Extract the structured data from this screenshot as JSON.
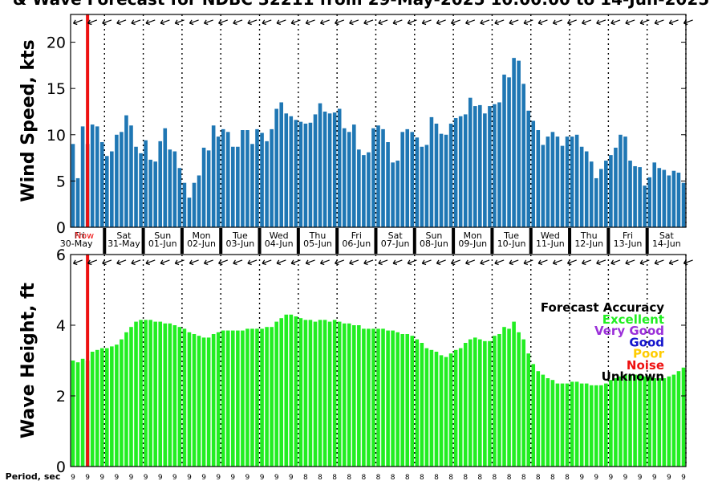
{
  "title": "& Wave Forecast for NDBC 32211 from 29-May-2025 10:00:00 to 14-Jun-2025",
  "period_label": "Period, sec",
  "now_label": "Now",
  "day_labels": [
    {
      "day": "Fri",
      "date": "30-May"
    },
    {
      "day": "Sat",
      "date": "31-May"
    },
    {
      "day": "Sun",
      "date": "01-Jun"
    },
    {
      "day": "Mon",
      "date": "02-Jun"
    },
    {
      "day": "Tue",
      "date": "03-Jun"
    },
    {
      "day": "Wed",
      "date": "04-Jun"
    },
    {
      "day": "Thu",
      "date": "05-Jun"
    },
    {
      "day": "Fri",
      "date": "06-Jun"
    },
    {
      "day": "Sat",
      "date": "07-Jun"
    },
    {
      "day": "Sun",
      "date": "08-Jun"
    },
    {
      "day": "Mon",
      "date": "09-Jun"
    },
    {
      "day": "Tue",
      "date": "10-Jun"
    },
    {
      "day": "Wed",
      "date": "11-Jun"
    },
    {
      "day": "Thu",
      "date": "12-Jun"
    },
    {
      "day": "Fri",
      "date": "13-Jun"
    },
    {
      "day": "Sat",
      "date": "14-Jun"
    }
  ],
  "legend": {
    "title": "Forecast Accuracy",
    "items": [
      {
        "label": "Excellent",
        "color": "#22ee22"
      },
      {
        "label": "Very Good",
        "color": "#9b30d9"
      },
      {
        "label": "Good",
        "color": "#1515cc"
      },
      {
        "label": "Poor",
        "color": "#ffcc00"
      },
      {
        "label": "Noise",
        "color": "#ee1111"
      },
      {
        "label": "Unknown",
        "color": "#000000"
      }
    ],
    "title_color": "#000000"
  },
  "colors": {
    "wind_bar": "#1f77b4",
    "wave_bar": "#22ee22",
    "now_line": "#ee1111",
    "axis": "#000000"
  },
  "chart_data": [
    {
      "type": "bar",
      "ylabel": "Wind Speed, kts",
      "ylim": [
        0,
        23
      ],
      "yticks": [
        0,
        5,
        10,
        15,
        20
      ],
      "grid": false,
      "now_index": 3.5,
      "values": [
        9,
        5.3,
        10.9,
        9,
        11.1,
        10.9,
        9.2,
        7.7,
        8.2,
        10,
        10.3,
        12.1,
        11,
        8.7,
        8,
        9.4,
        7.3,
        7.1,
        9.3,
        10.7,
        8.4,
        8.2,
        6.4,
        4.8,
        3.2,
        4.8,
        5.6,
        8.6,
        8.3,
        11,
        9.8,
        10.6,
        10.3,
        8.7,
        8.7,
        10.5,
        10.5,
        9,
        10.6,
        10.2,
        9.3,
        10.6,
        12.8,
        13.5,
        12.3,
        12,
        11.6,
        11.4,
        11.2,
        11.3,
        12.2,
        13.4,
        12.5,
        12.3,
        12.4,
        12.8,
        10.7,
        10.3,
        11.1,
        8.4,
        7.8,
        8.1,
        10.7,
        11,
        10.6,
        9.2,
        7,
        7.2,
        10.3,
        10.6,
        10.3,
        9.7,
        8.7,
        8.9,
        11.9,
        11.2,
        10.1,
        10,
        11.2,
        11.8,
        12,
        12.2,
        14,
        13.1,
        13.2,
        12.3,
        13.1,
        13.3,
        13.5,
        16.5,
        16.2,
        18.3,
        18,
        15.5,
        12.6,
        11.5,
        10.5,
        8.9,
        9.8,
        10.3,
        9.8,
        8.8,
        9.8,
        9.8,
        10,
        8.7,
        8.2,
        7.1,
        5.3,
        6.3,
        7.2,
        7.8,
        8.6,
        10,
        9.8,
        7.2,
        6.6,
        6.5,
        4.5,
        5.4,
        7,
        6.4,
        6.2,
        5.6,
        6.1,
        5.9,
        4.8
      ]
    },
    {
      "type": "bar",
      "ylabel": "Wave Height, ft",
      "ylim": [
        0,
        6
      ],
      "yticks": [
        0,
        2,
        4,
        6
      ],
      "grid": false,
      "now_index": 3.5,
      "values": [
        3,
        2.95,
        3.05,
        3,
        3.25,
        3.3,
        3.35,
        3.35,
        3.4,
        3.45,
        3.6,
        3.8,
        3.95,
        4.1,
        4.15,
        4.15,
        4.15,
        4.1,
        4.1,
        4.05,
        4.05,
        4,
        3.95,
        3.9,
        3.8,
        3.75,
        3.7,
        3.65,
        3.65,
        3.75,
        3.8,
        3.85,
        3.85,
        3.85,
        3.85,
        3.85,
        3.9,
        3.9,
        3.9,
        3.9,
        3.95,
        3.95,
        4.1,
        4.2,
        4.3,
        4.3,
        4.25,
        4.2,
        4.15,
        4.15,
        4.1,
        4.15,
        4.15,
        4.1,
        4.15,
        4.1,
        4.05,
        4.05,
        4,
        4,
        3.9,
        3.9,
        3.9,
        3.9,
        3.9,
        3.85,
        3.85,
        3.8,
        3.75,
        3.75,
        3.7,
        3.6,
        3.5,
        3.35,
        3.3,
        3.25,
        3.15,
        3.1,
        3.2,
        3.3,
        3.35,
        3.5,
        3.6,
        3.65,
        3.6,
        3.55,
        3.55,
        3.7,
        3.75,
        3.95,
        3.9,
        4.1,
        3.8,
        3.6,
        3.2,
        2.9,
        2.7,
        2.6,
        2.5,
        2.45,
        2.35,
        2.35,
        2.35,
        2.4,
        2.4,
        2.35,
        2.35,
        2.3,
        2.3,
        2.3,
        2.35,
        2.45,
        2.5,
        2.55,
        2.6,
        2.6,
        2.6,
        2.6,
        2.55,
        2.55,
        2.5,
        2.5,
        2.5,
        2.55,
        2.6,
        2.7,
        2.8
      ]
    }
  ]
}
